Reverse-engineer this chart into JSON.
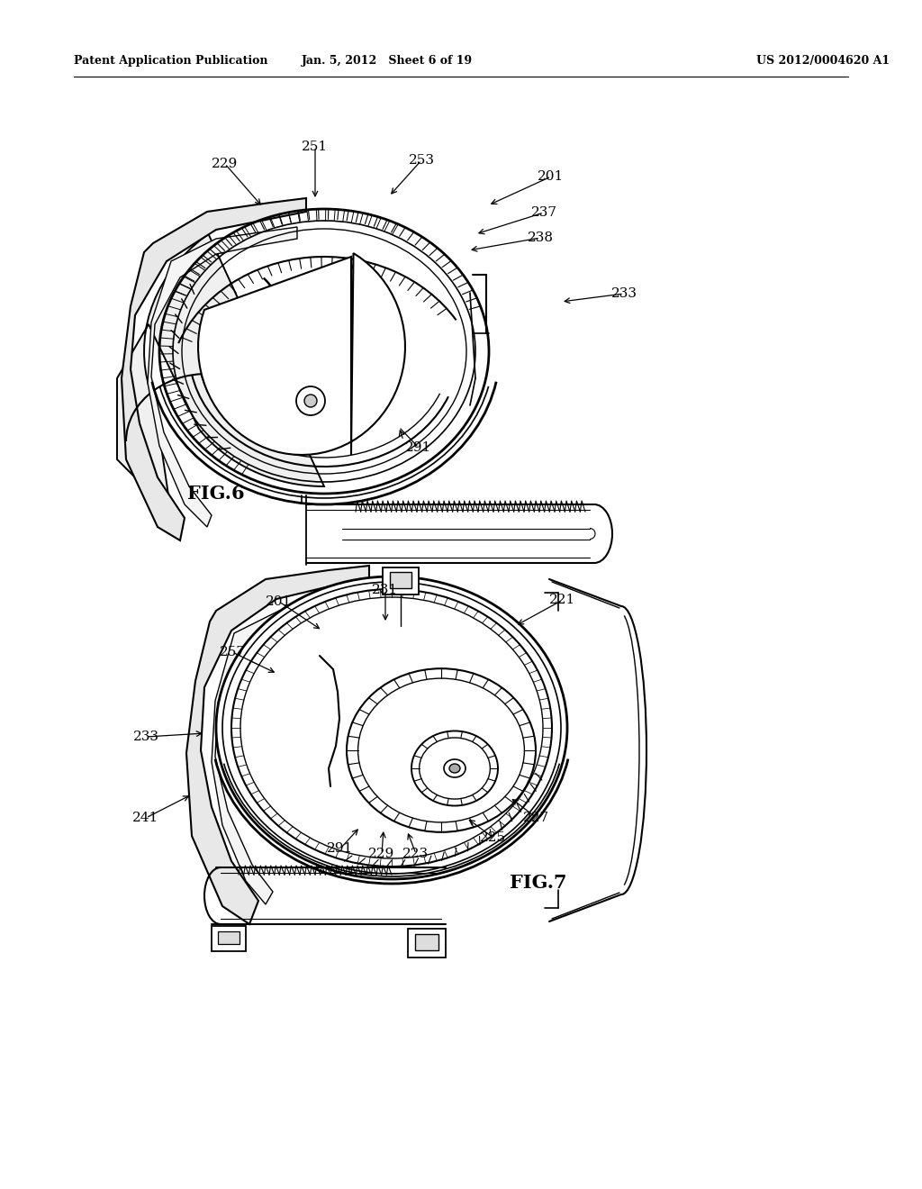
{
  "background_color": "#ffffff",
  "header_left": "Patent Application Publication",
  "header_center": "Jan. 5, 2012   Sheet 6 of 19",
  "header_right": "US 2012/0004620 A1",
  "fig6_label": "FIG.6",
  "fig7_label": "FIG.7",
  "fig6_annotations": [
    [
      "251",
      350,
      175,
      345,
      218,
      "right"
    ],
    [
      "229",
      258,
      195,
      285,
      232,
      "right"
    ],
    [
      "253",
      468,
      185,
      440,
      218,
      "right"
    ],
    [
      "201",
      610,
      198,
      545,
      228,
      "left"
    ],
    [
      "237",
      602,
      240,
      530,
      262,
      "left"
    ],
    [
      "238",
      597,
      268,
      527,
      280,
      "left"
    ],
    [
      "233",
      688,
      325,
      618,
      332,
      "left"
    ],
    [
      "291",
      463,
      500,
      440,
      476,
      "right"
    ]
  ],
  "fig7_annotations": [
    [
      "201",
      310,
      668,
      355,
      696,
      "right"
    ],
    [
      "231",
      428,
      660,
      428,
      688,
      "center"
    ],
    [
      "221",
      620,
      668,
      570,
      694,
      "left"
    ],
    [
      "257",
      260,
      726,
      313,
      746,
      "right"
    ],
    [
      "233",
      165,
      820,
      228,
      816,
      "right"
    ],
    [
      "241",
      165,
      910,
      215,
      886,
      "right"
    ],
    [
      "291",
      380,
      945,
      398,
      920,
      "center"
    ],
    [
      "229",
      426,
      950,
      424,
      924,
      "center"
    ],
    [
      "223",
      462,
      950,
      455,
      924,
      "center"
    ],
    [
      "225",
      548,
      932,
      520,
      908,
      "left"
    ],
    [
      "227",
      595,
      910,
      568,
      888,
      "left"
    ]
  ]
}
